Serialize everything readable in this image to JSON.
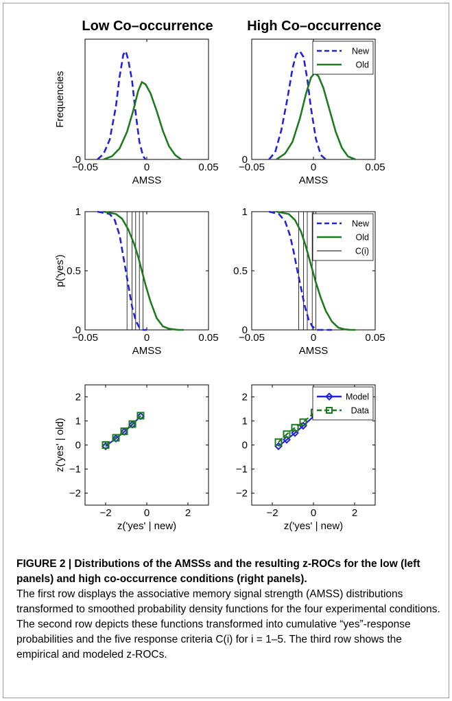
{
  "column_titles": [
    "Low Co–occurrence",
    "High Co–occurrence"
  ],
  "colors": {
    "new": "#2222dd",
    "old": "#1e7a1e",
    "criteria": "#000000",
    "model": "#2222dd",
    "data": "#1e7a1e"
  },
  "chart_data": [
    {
      "type": "line",
      "panel": "row1-left",
      "xlabel": "AMSS",
      "ylabel": "Frequencies",
      "xlim": [
        -0.05,
        0.05
      ],
      "xticks": [
        "−0.05",
        "0",
        "0.05"
      ],
      "yticks": [
        "0"
      ],
      "series": [
        {
          "style": "dashed",
          "color": "#2222dd",
          "x": [
            -0.04,
            -0.035,
            -0.03,
            -0.025,
            -0.022,
            -0.019,
            -0.017,
            -0.015,
            -0.012,
            -0.009,
            -0.006,
            -0.003,
            -0.001
          ],
          "y": [
            0.0,
            0.05,
            0.18,
            0.48,
            0.75,
            0.95,
            0.98,
            0.9,
            0.72,
            0.42,
            0.16,
            0.03,
            0.0
          ]
        },
        {
          "style": "solid",
          "color": "#1e7a1e",
          "x": [
            -0.035,
            -0.028,
            -0.022,
            -0.016,
            -0.011,
            -0.007,
            -0.004,
            -0.001,
            0.003,
            0.008,
            0.013,
            0.018,
            0.023,
            0.028
          ],
          "y": [
            0.0,
            0.03,
            0.1,
            0.25,
            0.44,
            0.62,
            0.7,
            0.68,
            0.6,
            0.44,
            0.26,
            0.12,
            0.04,
            0.0
          ]
        }
      ]
    },
    {
      "type": "line",
      "panel": "row1-right",
      "xlabel": "AMSS",
      "ylabel": "",
      "xlim": [
        -0.05,
        0.05
      ],
      "xticks": [
        "−0.05",
        "0",
        "0.05"
      ],
      "yticks": [
        "0"
      ],
      "legend": [
        "New",
        "Old"
      ],
      "legend_position": "top-right",
      "series": [
        {
          "name": "New",
          "style": "dashed",
          "color": "#2222dd",
          "x": [
            -0.036,
            -0.031,
            -0.026,
            -0.021,
            -0.017,
            -0.014,
            -0.011,
            -0.008,
            -0.005,
            -0.002,
            0.002,
            0.006,
            0.01
          ],
          "y": [
            0.0,
            0.05,
            0.2,
            0.42,
            0.62,
            0.72,
            0.74,
            0.7,
            0.55,
            0.35,
            0.14,
            0.03,
            0.0
          ]
        },
        {
          "name": "Old",
          "style": "solid",
          "color": "#1e7a1e",
          "x": [
            -0.03,
            -0.023,
            -0.017,
            -0.011,
            -0.006,
            -0.002,
            0.001,
            0.004,
            0.008,
            0.013,
            0.018,
            0.023,
            0.028,
            0.034
          ],
          "y": [
            0.0,
            0.04,
            0.12,
            0.28,
            0.45,
            0.56,
            0.59,
            0.57,
            0.49,
            0.34,
            0.19,
            0.08,
            0.02,
            0.0
          ]
        }
      ]
    },
    {
      "type": "line",
      "panel": "row2-left",
      "xlabel": "AMSS",
      "ylabel": "p('yes')",
      "xlim": [
        -0.05,
        0.05
      ],
      "ylim": [
        0,
        1
      ],
      "xticks": [
        "−0.05",
        "0",
        "0.05"
      ],
      "yticks": [
        "0",
        "0.5",
        "1"
      ],
      "criteria_x": [
        -0.016,
        -0.012,
        -0.009,
        -0.006,
        -0.003
      ],
      "series": [
        {
          "style": "dashed",
          "color": "#2222dd",
          "x": [
            -0.04,
            -0.03,
            -0.026,
            -0.022,
            -0.019,
            -0.017,
            -0.015,
            -0.012,
            -0.009,
            -0.006,
            -0.003,
            0.0
          ],
          "y": [
            1.0,
            0.98,
            0.93,
            0.8,
            0.62,
            0.5,
            0.38,
            0.2,
            0.08,
            0.02,
            0.0,
            0.0
          ]
        },
        {
          "style": "solid",
          "color": "#1e7a1e",
          "x": [
            -0.035,
            -0.025,
            -0.02,
            -0.015,
            -0.01,
            -0.007,
            -0.004,
            -0.001,
            0.003,
            0.008,
            0.013,
            0.018,
            0.025,
            0.03
          ],
          "y": [
            1.0,
            0.98,
            0.94,
            0.85,
            0.72,
            0.62,
            0.5,
            0.38,
            0.24,
            0.1,
            0.03,
            0.01,
            0.0,
            0.0
          ]
        }
      ]
    },
    {
      "type": "line",
      "panel": "row2-right",
      "xlabel": "AMSS",
      "ylabel": "",
      "xlim": [
        -0.05,
        0.05
      ],
      "ylim": [
        0,
        1
      ],
      "xticks": [
        "−0.05",
        "0",
        "0.05"
      ],
      "yticks": [
        "0",
        "0.5",
        "1"
      ],
      "legend": [
        "New",
        "Old",
        "C(i)"
      ],
      "legend_position": "top-right",
      "criteria_x": [
        -0.012,
        -0.008,
        -0.005,
        -0.001,
        0.002
      ],
      "series": [
        {
          "name": "New",
          "style": "dashed",
          "color": "#2222dd",
          "x": [
            -0.036,
            -0.028,
            -0.023,
            -0.019,
            -0.016,
            -0.013,
            -0.01,
            -0.007,
            -0.004,
            -0.001,
            0.003,
            0.008,
            0.015
          ],
          "y": [
            1.0,
            0.98,
            0.92,
            0.8,
            0.66,
            0.5,
            0.35,
            0.2,
            0.09,
            0.03,
            0.0,
            0.0,
            0.0
          ]
        },
        {
          "name": "Old",
          "style": "solid",
          "color": "#1e7a1e",
          "x": [
            -0.03,
            -0.02,
            -0.015,
            -0.01,
            -0.006,
            -0.002,
            0.002,
            0.006,
            0.01,
            0.015,
            0.02,
            0.025,
            0.03,
            0.034
          ],
          "y": [
            1.0,
            0.98,
            0.93,
            0.83,
            0.7,
            0.55,
            0.4,
            0.27,
            0.16,
            0.07,
            0.02,
            0.005,
            0.0,
            0.0
          ]
        }
      ]
    },
    {
      "type": "line",
      "panel": "row3-left",
      "xlabel": "z('yes' | new)",
      "ylabel": "z('yes' | old)",
      "xlim": [
        -3,
        3
      ],
      "ylim": [
        -2.5,
        2.5
      ],
      "xticks": [
        "−2",
        "0",
        "2"
      ],
      "yticks": [
        "−2",
        "−1",
        "0",
        "1",
        "2"
      ],
      "series": [
        {
          "style": "solid",
          "color": "#2222dd",
          "marker": "diamond",
          "x": [
            -2.0,
            -1.5,
            -1.1,
            -0.7,
            -0.3
          ],
          "y": [
            -0.05,
            0.27,
            0.55,
            0.85,
            1.2
          ]
        },
        {
          "style": "dashed",
          "color": "#1e7a1e",
          "marker": "square",
          "x": [
            -2.0,
            -1.5,
            -1.1,
            -0.7,
            -0.3
          ],
          "y": [
            0.0,
            0.3,
            0.57,
            0.87,
            1.22
          ]
        }
      ]
    },
    {
      "type": "line",
      "panel": "row3-right",
      "xlabel": "z('yes' | new)",
      "ylabel": "",
      "xlim": [
        -3,
        3
      ],
      "ylim": [
        -2.5,
        2.5
      ],
      "xticks": [
        "−2",
        "0",
        "2"
      ],
      "yticks": [
        "−2",
        "−1",
        "0",
        "1",
        "2"
      ],
      "legend": [
        "Model",
        "Data"
      ],
      "legend_position": "top-right",
      "series": [
        {
          "name": "Model",
          "style": "solid",
          "color": "#2222dd",
          "marker": "diamond",
          "x": [
            -1.7,
            -1.3,
            -0.9,
            -0.5,
            0.05
          ],
          "y": [
            -0.05,
            0.22,
            0.5,
            0.8,
            1.22
          ]
        },
        {
          "name": "Data",
          "style": "dashed",
          "color": "#1e7a1e",
          "marker": "square",
          "x": [
            -1.7,
            -1.3,
            -0.9,
            -0.5,
            0.05
          ],
          "y": [
            0.12,
            0.45,
            0.72,
            0.95,
            1.35
          ]
        }
      ]
    }
  ],
  "caption": {
    "title": "FIGURE 2 | Distributions of the AMSSs and the resulting z-ROCs for the low (left panels) and high co-occurrence conditions (right panels).",
    "body": "The first row displays the associative memory signal strength (AMSS) distributions transformed to smoothed probability density functions for the four experimental conditions. The second row depicts these functions transformed into cumulative “yes”-response probabilities and the five response criteria C(i) for i = 1–5. The third row shows the empirical and modeled z-ROCs."
  }
}
